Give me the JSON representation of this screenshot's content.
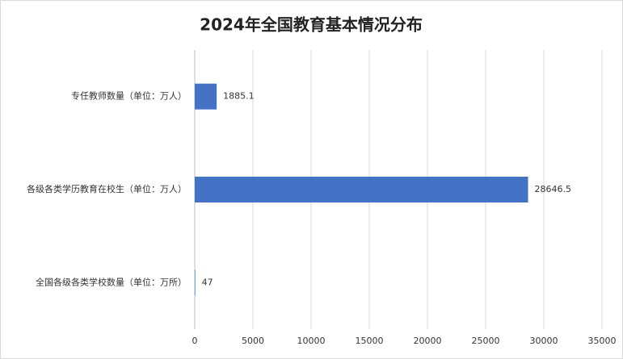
{
  "chart_data": {
    "type": "bar",
    "orientation": "horizontal",
    "title": "2024年全国教育基本情况分布",
    "categories": [
      "专任教师数量（单位：万人）",
      "各级各类学历教育在校生（单位：万人）",
      "全国各级各类学校数量（单位：万所）"
    ],
    "values": [
      1885.1,
      28646.5,
      47
    ],
    "color": "#4472c4",
    "xlim": [
      0,
      35000
    ],
    "xticks": [
      0,
      5000,
      10000,
      15000,
      20000,
      25000,
      30000,
      35000
    ],
    "grid": true
  }
}
